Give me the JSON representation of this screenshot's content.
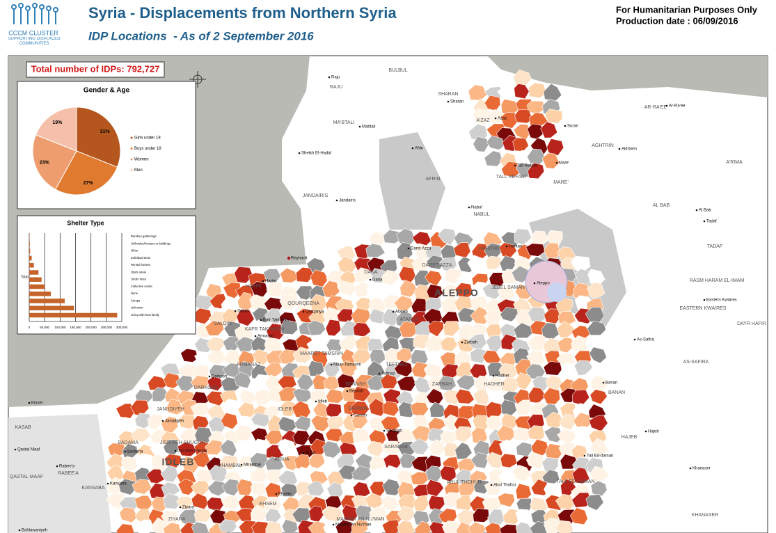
{
  "header": {
    "logo_title": "CCCM CLUSTER",
    "logo_subtitle": "SUPPORTING DISPLACED COMMUNITIES",
    "title": "Syria - Displacements from Northern Syria",
    "subtitle": "IDP Locations  - As of 2 September 2016",
    "note": "For Humanitarian Purposes Only",
    "production_date": "Production date : 06/09/2016"
  },
  "total": "Total number of IDPs: 792,727",
  "chart_data": [
    {
      "type": "pie",
      "title": "Gender & Age",
      "categories": [
        "Girls under 18",
        "Boys under 18",
        "Women",
        "Men"
      ],
      "values": [
        31,
        27,
        23,
        19
      ],
      "value_labels": [
        "31%",
        "27%",
        "23%",
        "19%"
      ],
      "colors": [
        "#b5561e",
        "#e07a2e",
        "#ee9e6e",
        "#f4c0aa"
      ]
    },
    {
      "type": "bar",
      "orientation": "horizontal",
      "title": "Shelter Type",
      "ylabel": "Total",
      "categories": [
        "Random gatherings",
        "Unfinished houses or buildings",
        "Other",
        "Individual tents",
        "Rented houses",
        "Open areas",
        "Under trees",
        "Collective center",
        "None",
        "Camps",
        "Unknown",
        "Living with host family"
      ],
      "values": [
        1000,
        2000,
        3000,
        8000,
        15000,
        30000,
        40000,
        50000,
        70000,
        115000,
        145000,
        285000
      ],
      "color": "#c4642a",
      "xlim": [
        0,
        300000
      ],
      "xticks": [
        0,
        {
          "value": 50000,
          "label": "50,000"
        },
        {
          "value": 100000,
          "label": "100,000"
        },
        {
          "value": 150000,
          "label": "150,000"
        },
        {
          "value": 200000,
          "label": "200,000"
        },
        {
          "value": 250000,
          "label": "250,000"
        },
        {
          "value": 300000,
          "label": "300,000"
        }
      ],
      "grid": true
    }
  ],
  "map": {
    "regions": [
      "ALEPPO",
      "IDLEB"
    ],
    "districts": [
      "BULBUL",
      "RAJU",
      "SHARAN",
      "A'ZAZ",
      "AR-RA'EE",
      "MA'BTALI",
      "AFRIN",
      "AGHTRIN",
      "A'RIMA",
      "TALL REFAAT",
      "MARE'",
      "JANDAIRIS",
      "NABUL",
      "AL BAB",
      "TADAF",
      "DARET AZZA",
      "HARITAN",
      "JEBEL SAMAN",
      "RASM HARAM EL-IMAM",
      "EASTERN KWAIRES",
      "DAYR HAFIR",
      "HARIM",
      "DANA",
      "QOURQEENA",
      "ATAREB",
      "SALQIN",
      "KAFR TAKHARIM",
      "MAARET TAMSRIN",
      "TEFTNAZ",
      "AS-SAFIRA",
      "ARMANAZ",
      "DARKOSH",
      "BENNSH",
      "ZARBAH",
      "HADHER",
      "BANAN",
      "JANUDIYEH",
      "IDLEB",
      "SARMIN",
      "KASAB",
      "BADAMA",
      "SARAQAB",
      "HAJEB",
      "JISR-ASH-SHUGUR",
      "QASTAL MAAF",
      "RABEE'A",
      "MHAMBAL",
      "ARIHA",
      "TALL ED-DAMAN",
      "ABUL THOHUR",
      "KHANASER",
      "KANSABA",
      "EHSEM",
      "ZIYARA",
      "MARRAT AN NU'MAN"
    ],
    "towns": [
      "Raju",
      "Sharan",
      "Azaz",
      "Suran",
      "Ar-Ra'ee",
      "Mabtali",
      "Sheikh El-Hadid",
      "Afrin",
      "Akhtrein",
      "Tall Refaat",
      "Mare'",
      "Jandairis",
      "Nabul",
      "Al Bab",
      "Tadaf",
      "Reyhanli",
      "Daret Azza",
      "Haritan",
      "Aleppo",
      "Harim",
      "Dana",
      "Qorqanya",
      "Atareb",
      "Eastern Kwaires",
      "Salqin",
      "Kafr Takharim",
      "Armanaz",
      "Zarbah",
      "As-Safira",
      "Maar-Tamasrin",
      "Teftnaz",
      "Banan",
      "Darkosh",
      "Hadher",
      "Bennsh",
      "Kissel",
      "Idleb",
      "Janudiyeh",
      "Sarmin",
      "Saraqab",
      "Hajeb",
      "Badama",
      "Jisr-Ash-Shugur",
      "Qastal Maaf",
      "Rabee'a",
      "Mhambal",
      "Ariha",
      "Tall Ed-daman",
      "Khanaser",
      "Kansaba",
      "Abul Thohur",
      "Ehsem",
      "Ziyara",
      "Maarrat An Nu'man",
      "Bahlawaniyeh"
    ]
  }
}
